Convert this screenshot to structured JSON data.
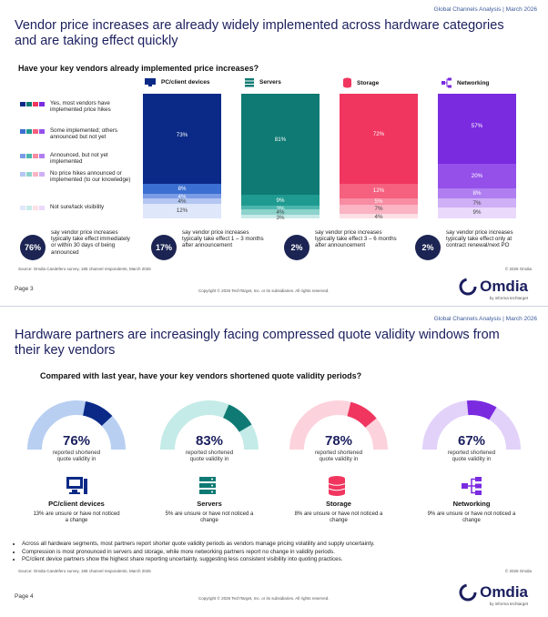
{
  "page3": {
    "header_tag": "Global Channels Analysis | March 2026",
    "title": "Vendor price increases are already widely implemented across hardware categories and are taking effect quickly",
    "question": "Have your key vendors already implemented price increases?",
    "legend": [
      {
        "label": "Yes, most vendors have implemented price hikes"
      },
      {
        "label": "Some implemented; others announced but not yet"
      },
      {
        "label": "Announced, but not yet implemented"
      },
      {
        "label": "No price hikes announced or implemented (to our knowledge)"
      },
      {
        "label": "Not sure/lack visibility"
      }
    ],
    "stats": [
      {
        "pct": "76%",
        "text": "say vendor price increases typically take effect immediately or within 30 days of being announced"
      },
      {
        "pct": "17%",
        "text": "say vendor price increases typically take effect 1 – 3 months after announcement"
      },
      {
        "pct": "2%",
        "text": "say vendor price increases typically take effect 3 – 6 months after announcement"
      },
      {
        "pct": "2%",
        "text": "say vendor price increases typically take effect only at contract renewal/next PO"
      }
    ],
    "source": "Source: Omdia Candefero survey, 186 channel respondents, March 2026",
    "copyright": "© 2026 Omdia",
    "page_number": "Page 3",
    "footer_legal": "Copyright © 2026 TechTarget, Inc. or its subsidiaries. All rights reserved."
  },
  "page4": {
    "header_tag": "Global Channels Analysis | March 2026",
    "title": "Hardware partners are increasingly facing compressed quote validity windows from their key vendors",
    "question": "Compared with last year, have your key vendors shortened quote validity periods?",
    "gauge_caption": "reported shortened quote validity in",
    "segments": [
      {
        "name": "PC/client devices",
        "pct": "76%",
        "value": 76,
        "unsure": "13% are unsure or have not noticed a change",
        "icon": "desktop-icon"
      },
      {
        "name": "Servers",
        "pct": "83%",
        "value": 83,
        "unsure": "5% are unsure or have not noticed a change",
        "icon": "server-icon"
      },
      {
        "name": "Storage",
        "pct": "78%",
        "value": 78,
        "unsure": "8% are unsure or have not noticed a change",
        "icon": "database-icon"
      },
      {
        "name": "Networking",
        "pct": "67%",
        "value": 67,
        "unsure": "9% are unsure or have not noticed a change",
        "icon": "network-icon"
      }
    ],
    "bullets": [
      "Across all hardware segments, most partners report shorter quote validity periods as vendors manage pricing volatility and supply uncertainty.",
      "Compression is most pronounced in servers and storage, while more networking partners report no change in validity periods.",
      "PC/client device partners show the highest share reporting uncertainty, suggesting less consistent visibility into quoting practices."
    ],
    "source": "Source: Omdia Candefero survey, 186 channel respondents, March 2026",
    "copyright": "© 2026 Omdia",
    "page_number": "Page 4",
    "footer_legal": "Copyright © 2026 TechTarget, Inc. or its subsidiaries. All rights reserved."
  },
  "brand": {
    "name": "Omdia",
    "sub": "by informa techtarget"
  },
  "colors": {
    "navy": "#1b2452",
    "pc": "#0b2a87",
    "servers": "#0e7a73",
    "storage": "#f0365f",
    "networking": "#7a2be0"
  },
  "chart_data": [
    {
      "type": "bar",
      "stacked": true,
      "title": "Have your key vendors already implemented price increases?",
      "categories": [
        "PC/client devices",
        "Servers",
        "Storage",
        "Networking"
      ],
      "series": [
        {
          "name": "Yes, most vendors have implemented price hikes",
          "values": [
            73,
            81,
            72,
            57
          ]
        },
        {
          "name": "Some implemented; others announced but not yet",
          "values": [
            8,
            9,
            12,
            20
          ]
        },
        {
          "name": "Announced, but not yet implemented",
          "values": [
            4,
            3,
            5,
            8
          ]
        },
        {
          "name": "No price hikes announced or implemented (to our knowledge)",
          "values": [
            4,
            4,
            7,
            7
          ]
        },
        {
          "name": "Not sure/lack visibility",
          "values": [
            12,
            3,
            4,
            9
          ]
        }
      ],
      "labels": [
        [
          "73%",
          "8%",
          "4%",
          "4%",
          "12%"
        ],
        [
          "81%",
          "9%",
          "3%",
          "4%",
          "3%"
        ],
        [
          "72%",
          "12%",
          "5%",
          "7%",
          "4%"
        ],
        [
          "57%",
          "20%",
          "8%",
          "7%",
          "9%"
        ]
      ],
      "ylim": [
        0,
        100
      ]
    },
    {
      "type": "gauge",
      "title": "Compared with last year, have your key vendors shortened quote validity periods?",
      "categories": [
        "PC/client devices",
        "Servers",
        "Storage",
        "Networking"
      ],
      "values": [
        76,
        83,
        78,
        67
      ],
      "unit": "%"
    }
  ]
}
